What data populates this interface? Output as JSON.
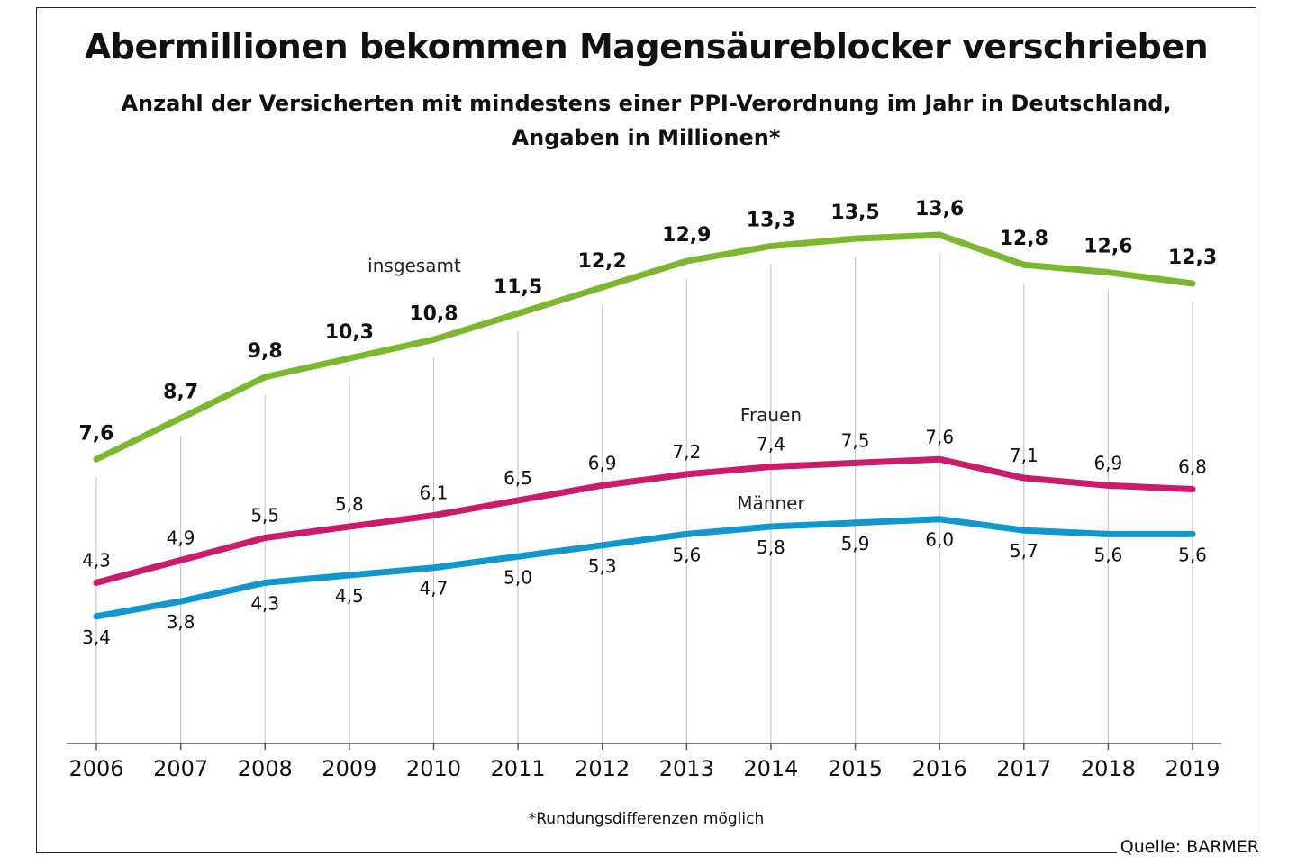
{
  "title": "Abermillionen bekommen Magensäureblocker verschrieben",
  "subtitle_line1": "Anzahl der Versicherten mit mindestens einer PPI-Verordnung im Jahr in Deutschland,",
  "subtitle_line2": "Angaben in Millionen*",
  "footnote": "*Rundungsdifferenzen möglich",
  "source": "Quelle: BARMER",
  "chart_data": {
    "type": "line",
    "title": "Abermillionen bekommen Magensäureblocker verschrieben",
    "xlabel": "",
    "ylabel": "",
    "ylim": [
      0,
      15
    ],
    "grid": "vertical lines at each year",
    "legend": "inline labels",
    "x": [
      "2006",
      "2007",
      "2008",
      "2009",
      "2010",
      "2011",
      "2012",
      "2013",
      "2014",
      "2015",
      "2016",
      "2017",
      "2018",
      "2019"
    ],
    "series": [
      {
        "name": "insgesamt",
        "color": "#7cb82f",
        "values": [
          7.6,
          8.7,
          9.8,
          10.3,
          10.8,
          11.5,
          12.2,
          12.9,
          13.3,
          13.5,
          13.6,
          12.8,
          12.6,
          12.3
        ],
        "labels": [
          "7,6",
          "8,7",
          "9,8",
          "10,3",
          "10,8",
          "11,5",
          "12,2",
          "12,9",
          "13,3",
          "13,5",
          "13,6",
          "12,8",
          "12,6",
          "12,3"
        ]
      },
      {
        "name": "Frauen",
        "color": "#cc1a6c",
        "values": [
          4.3,
          4.9,
          5.5,
          5.8,
          6.1,
          6.5,
          6.9,
          7.2,
          7.4,
          7.5,
          7.6,
          7.1,
          6.9,
          6.8
        ],
        "labels": [
          "4,3",
          "4,9",
          "5,5",
          "5,8",
          "6,1",
          "6,5",
          "6,9",
          "7,2",
          "7,4",
          "7,5",
          "7,6",
          "7,1",
          "6,9",
          "6,8"
        ]
      },
      {
        "name": "Männer",
        "color": "#1196cf",
        "values": [
          3.4,
          3.8,
          4.3,
          4.5,
          4.7,
          5.0,
          5.3,
          5.6,
          5.8,
          5.9,
          6.0,
          5.7,
          5.6,
          5.6
        ],
        "labels": [
          "3,4",
          "3,8",
          "4,3",
          "4,5",
          "4,7",
          "5,0",
          "5,3",
          "5,6",
          "5,8",
          "5,9",
          "6,0",
          "5,7",
          "5,6",
          "5,6"
        ]
      }
    ]
  }
}
